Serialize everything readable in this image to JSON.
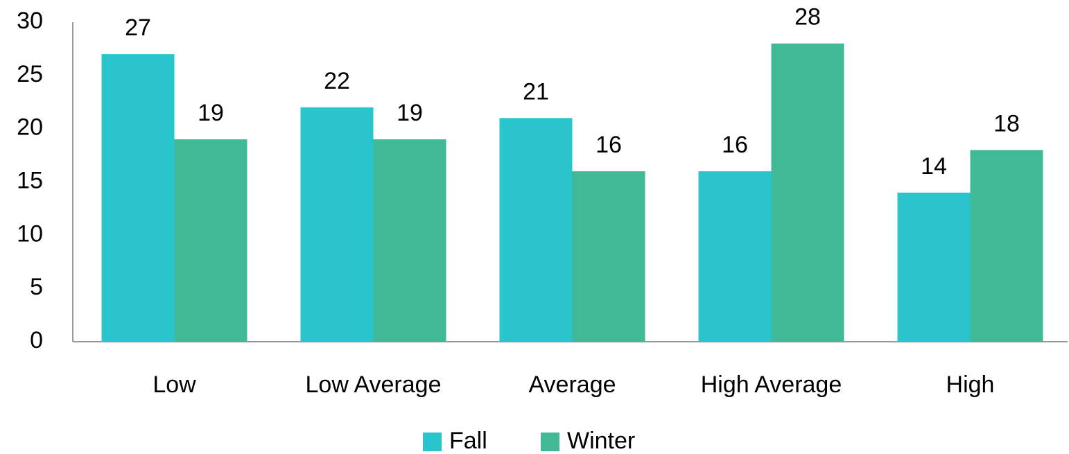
{
  "chart_data": {
    "type": "bar",
    "categories": [
      "Low",
      "Low Average",
      "Average",
      "High Average",
      "High"
    ],
    "series": [
      {
        "name": "Fall",
        "color": "#29c4cc",
        "values": [
          27,
          22,
          21,
          16,
          14
        ]
      },
      {
        "name": "Winter",
        "color": "#40b996",
        "values": [
          19,
          19,
          16,
          28,
          18
        ]
      }
    ],
    "ylim": [
      0,
      30
    ],
    "yticks": [
      0,
      5,
      10,
      15,
      20,
      25,
      30
    ],
    "grid": false,
    "legend": "bottom"
  }
}
